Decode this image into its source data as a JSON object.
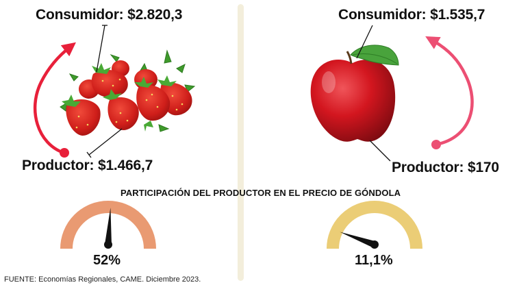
{
  "left": {
    "consumer_price": "Consumidor: $2.820,3",
    "producer_price": "Productor: $1.466,7",
    "percentage": "52%",
    "percentage_value": 52,
    "gauge_color": "#e99a72",
    "arrow_color": "#e8203a"
  },
  "right": {
    "consumer_price": "Consumidor: $1.535,7",
    "producer_price": "Productor: $170",
    "percentage": "11,1%",
    "percentage_value": 11.1,
    "gauge_color": "#ebcd76",
    "arrow_color": "#ec4f73"
  },
  "center_title": "PARTICIPACIÓN DEL PRODUCTOR EN EL PRECIO DE GÓNDOLA",
  "source": "FUENTE: Economías Regionales, CAME. Diciembre 2023.",
  "icons": [
    "strawberries-image",
    "apple-image",
    "gauge-needle-icon"
  ],
  "divider_color": "#f3eedb"
}
